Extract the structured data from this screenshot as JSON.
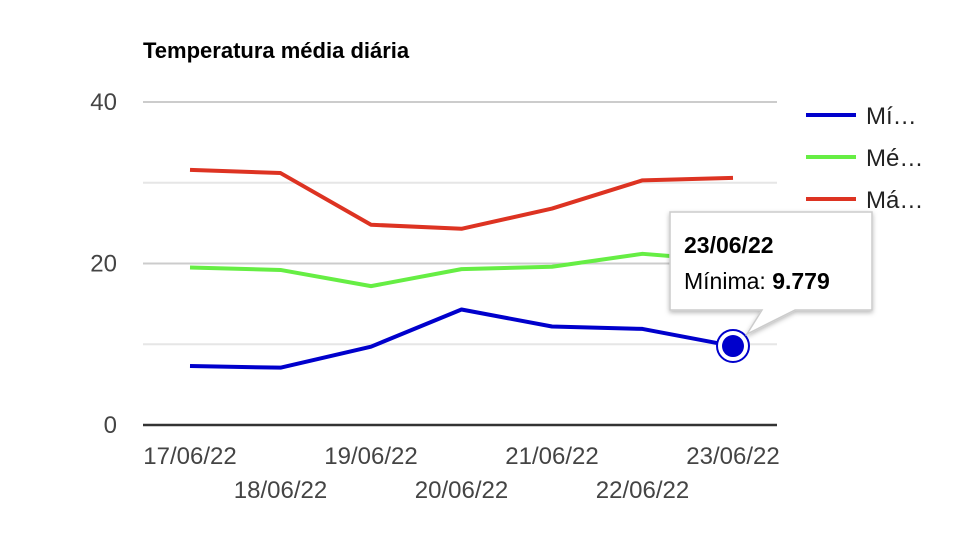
{
  "chart_data": {
    "type": "line",
    "title": "Temperatura média diária",
    "xlabel": "",
    "ylabel": "",
    "ylim": [
      0,
      40
    ],
    "yticks": [
      "0",
      "20",
      "40"
    ],
    "gridlines": [
      0,
      10,
      20,
      30,
      40
    ],
    "x": [
      "17/06/22",
      "18/06/22",
      "19/06/22",
      "20/06/22",
      "21/06/22",
      "22/06/22",
      "23/06/22"
    ],
    "legend_position": "right",
    "series": [
      {
        "key": "min",
        "name": "Mí…",
        "color": "#0000cc",
        "values": [
          7.3,
          7.1,
          9.7,
          14.3,
          12.2,
          11.9,
          9.779
        ]
      },
      {
        "key": "med",
        "name": "Mé…",
        "color": "#66ee44",
        "values": [
          19.5,
          19.2,
          17.2,
          19.3,
          19.6,
          21.2,
          20.3
        ]
      },
      {
        "key": "max",
        "name": "Má…",
        "color": "#dd3322",
        "values": [
          31.6,
          31.2,
          24.8,
          24.3,
          26.8,
          30.3,
          30.6
        ]
      }
    ],
    "tooltip": {
      "series_index": 0,
      "point_index": 6,
      "date": "23/06/22",
      "series_label": "Mínima:",
      "value": "9.779"
    }
  }
}
